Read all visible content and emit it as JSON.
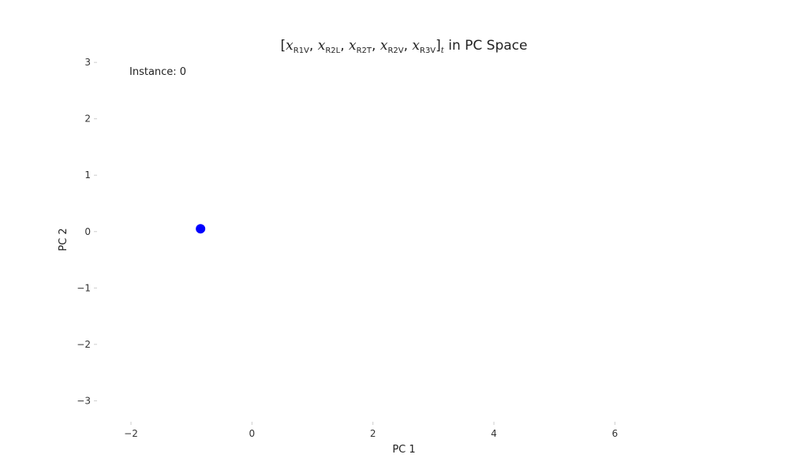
{
  "chart_data": {
    "type": "scatter",
    "title_parts": {
      "open": "[",
      "vars": [
        "x",
        "x",
        "x",
        "x",
        "x"
      ],
      "subs": [
        "R1V",
        "R2L",
        "R2T",
        "R2V",
        "R3V"
      ],
      "close": "]",
      "close_sub": "t",
      "suffix": " in PC Space"
    },
    "xlabel": "PC 1",
    "ylabel": "PC 2",
    "xlim": [
      -2.6,
      7.6
    ],
    "ylim": [
      -3.4,
      3.1
    ],
    "xticks": [
      -2,
      0,
      2,
      4,
      6
    ],
    "xtick_labels": [
      "−2",
      "0",
      "2",
      "4",
      "6"
    ],
    "yticks": [
      3,
      2,
      1,
      0,
      -1,
      -2,
      -3
    ],
    "ytick_labels": [
      "3",
      "2",
      "1",
      "0",
      "−1",
      "−2",
      "−3"
    ],
    "annotation": "Instance: 0",
    "points": [
      {
        "x": -0.85,
        "y": 0.05
      }
    ],
    "point_color": "#0000ff",
    "grid": false,
    "legend": "none"
  }
}
